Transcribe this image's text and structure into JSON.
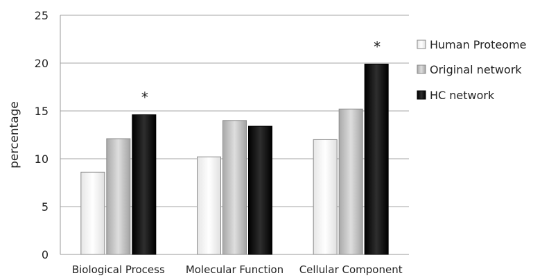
{
  "chart_data": {
    "type": "bar",
    "ylabel": "percentage",
    "ylim": [
      0,
      25
    ],
    "yticks": [
      "0",
      "5",
      "10",
      "15",
      "20",
      "25"
    ],
    "grid": true,
    "legend_position": "right",
    "categories": [
      "Biological Process",
      "Molecular Function",
      "Cellular Component"
    ],
    "series": [
      {
        "name": "Human Proteome",
        "values": [
          8.6,
          10.2,
          12.0
        ],
        "color": "#ffffff"
      },
      {
        "name": "Original network",
        "values": [
          12.1,
          14.0,
          15.2
        ],
        "color": "#c4c4c4"
      },
      {
        "name": "HC network",
        "values": [
          14.6,
          13.4,
          19.9
        ],
        "color": "#111111"
      }
    ],
    "annotations": [
      {
        "text": "*",
        "category": "Biological Process",
        "series": "HC network"
      },
      {
        "text": "*",
        "category": "Cellular Component",
        "series": "HC network"
      }
    ]
  }
}
